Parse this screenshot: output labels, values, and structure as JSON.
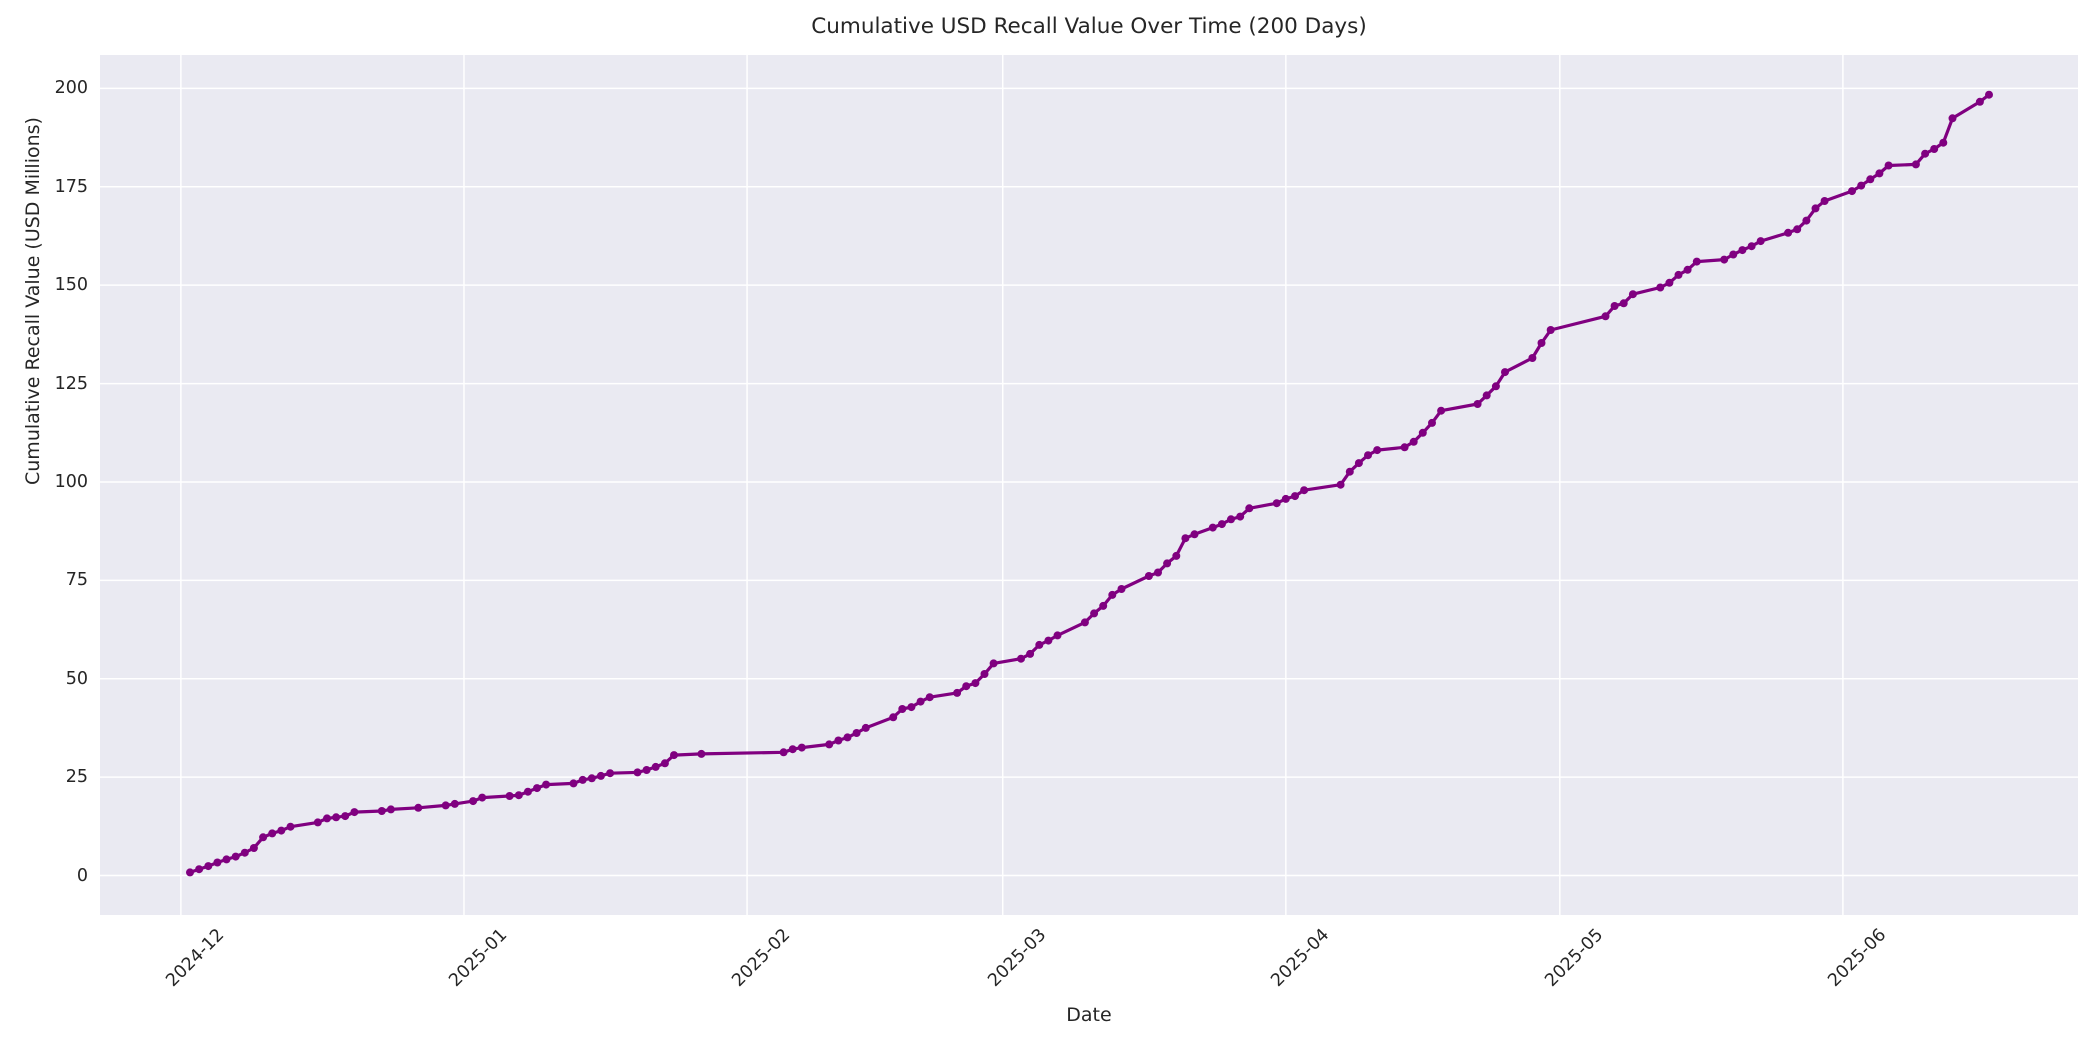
{
  "chart_data": {
    "type": "line",
    "title": "Cumulative USD Recall Value Over Time (200 Days)",
    "xlabel": "Date",
    "ylabel": "Cumulative Recall Value (USD Millions)",
    "grid": true,
    "legend_position": "none",
    "background_color": "#EAEAF2",
    "grid_color": "#FFFFFF",
    "line_color": "#800080",
    "marker": "o",
    "text_color": "#262626",
    "y_ticks": [
      0,
      25,
      50,
      75,
      100,
      125,
      150,
      175,
      200
    ],
    "ylim": [
      -10,
      208.5
    ],
    "x_tick_labels": [
      "2024-12",
      "2025-01",
      "2025-02",
      "2025-03",
      "2025-04",
      "2025-05",
      "2025-06"
    ],
    "x_tick_dates": [
      "2024-12-01",
      "2025-01-01",
      "2025-02-01",
      "2025-03-01",
      "2025-04-01",
      "2025-05-01",
      "2025-06-01"
    ],
    "series": [
      {
        "name": "Cumulative USD Recall Value",
        "x": [
          "2024-12-02",
          "2024-12-03",
          "2024-12-04",
          "2024-12-05",
          "2024-12-06",
          "2024-12-07",
          "2024-12-08",
          "2024-12-09",
          "2024-12-10",
          "2024-12-11",
          "2024-12-12",
          "2024-12-13",
          "2024-12-16",
          "2024-12-17",
          "2024-12-18",
          "2024-12-19",
          "2024-12-20",
          "2024-12-23",
          "2024-12-24",
          "2024-12-27",
          "2024-12-30",
          "2024-12-31",
          "2025-01-02",
          "2025-01-03",
          "2025-01-06",
          "2025-01-07",
          "2025-01-08",
          "2025-01-09",
          "2025-01-10",
          "2025-01-13",
          "2025-01-14",
          "2025-01-15",
          "2025-01-16",
          "2025-01-17",
          "2025-01-20",
          "2025-01-21",
          "2025-01-22",
          "2025-01-23",
          "2025-01-24",
          "2025-01-27",
          "2025-02-05",
          "2025-02-06",
          "2025-02-07",
          "2025-02-10",
          "2025-02-11",
          "2025-02-12",
          "2025-02-13",
          "2025-02-14",
          "2025-02-17",
          "2025-02-18",
          "2025-02-19",
          "2025-02-20",
          "2025-02-21",
          "2025-02-24",
          "2025-02-25",
          "2025-02-26",
          "2025-02-27",
          "2025-02-28",
          "2025-03-03",
          "2025-03-04",
          "2025-03-05",
          "2025-03-06",
          "2025-03-07",
          "2025-03-10",
          "2025-03-11",
          "2025-03-12",
          "2025-03-13",
          "2025-03-14",
          "2025-03-17",
          "2025-03-18",
          "2025-03-19",
          "2025-03-20",
          "2025-03-21",
          "2025-03-22",
          "2025-03-24",
          "2025-03-25",
          "2025-03-26",
          "2025-03-27",
          "2025-03-28",
          "2025-03-31",
          "2025-04-01",
          "2025-04-02",
          "2025-04-03",
          "2025-04-07",
          "2025-04-08",
          "2025-04-09",
          "2025-04-10",
          "2025-04-11",
          "2025-04-14",
          "2025-04-15",
          "2025-04-16",
          "2025-04-17",
          "2025-04-18",
          "2025-04-22",
          "2025-04-23",
          "2025-04-24",
          "2025-04-25",
          "2025-04-28",
          "2025-04-29",
          "2025-04-30",
          "2025-05-06",
          "2025-05-07",
          "2025-05-08",
          "2025-05-09",
          "2025-05-12",
          "2025-05-13",
          "2025-05-14",
          "2025-05-15",
          "2025-05-16",
          "2025-05-19",
          "2025-05-20",
          "2025-05-21",
          "2025-05-22",
          "2025-05-23",
          "2025-05-26",
          "2025-05-27",
          "2025-05-28",
          "2025-05-29",
          "2025-05-30",
          "2025-06-02",
          "2025-06-03",
          "2025-06-04",
          "2025-06-05",
          "2025-06-06",
          "2025-06-09",
          "2025-06-10",
          "2025-06-11",
          "2025-06-12",
          "2025-06-13",
          "2025-06-16",
          "2025-06-17"
        ],
        "y": [
          0.8,
          1.6,
          2.4,
          3.3,
          4.1,
          4.8,
          5.8,
          7.0,
          9.7,
          10.7,
          11.4,
          12.4,
          13.5,
          14.5,
          14.8,
          15.1,
          16.1,
          16.4,
          16.8,
          17.2,
          17.8,
          18.2,
          18.9,
          19.8,
          20.2,
          20.4,
          21.3,
          22.2,
          23.1,
          23.4,
          24.3,
          24.7,
          25.3,
          26.0,
          26.2,
          26.8,
          27.6,
          28.5,
          30.6,
          30.9,
          31.3,
          32.1,
          32.5,
          33.3,
          34.3,
          35.1,
          36.2,
          37.5,
          40.2,
          42.3,
          42.8,
          44.2,
          45.3,
          46.4,
          48.1,
          48.9,
          51.2,
          53.9,
          55.1,
          56.3,
          58.6,
          59.7,
          61.0,
          64.3,
          66.6,
          68.5,
          71.3,
          72.8,
          76.1,
          77.0,
          79.3,
          81.2,
          85.7,
          86.7,
          88.4,
          89.3,
          90.5,
          91.2,
          93.3,
          94.6,
          95.7,
          96.4,
          97.9,
          99.3,
          102.6,
          104.8,
          106.8,
          108.1,
          108.8,
          110.2,
          112.5,
          115.0,
          118.1,
          119.8,
          122.0,
          124.3,
          127.9,
          131.5,
          135.3,
          138.6,
          142.1,
          144.7,
          145.4,
          147.7,
          149.4,
          150.6,
          152.6,
          153.9,
          156.0,
          156.5,
          157.8,
          158.9,
          159.9,
          161.2,
          163.3,
          164.2,
          166.4,
          169.5,
          171.4,
          173.9,
          175.3,
          176.9,
          178.4,
          180.4,
          180.7,
          183.4,
          184.6,
          186.2,
          192.4,
          196.6,
          198.4
        ]
      }
    ]
  }
}
